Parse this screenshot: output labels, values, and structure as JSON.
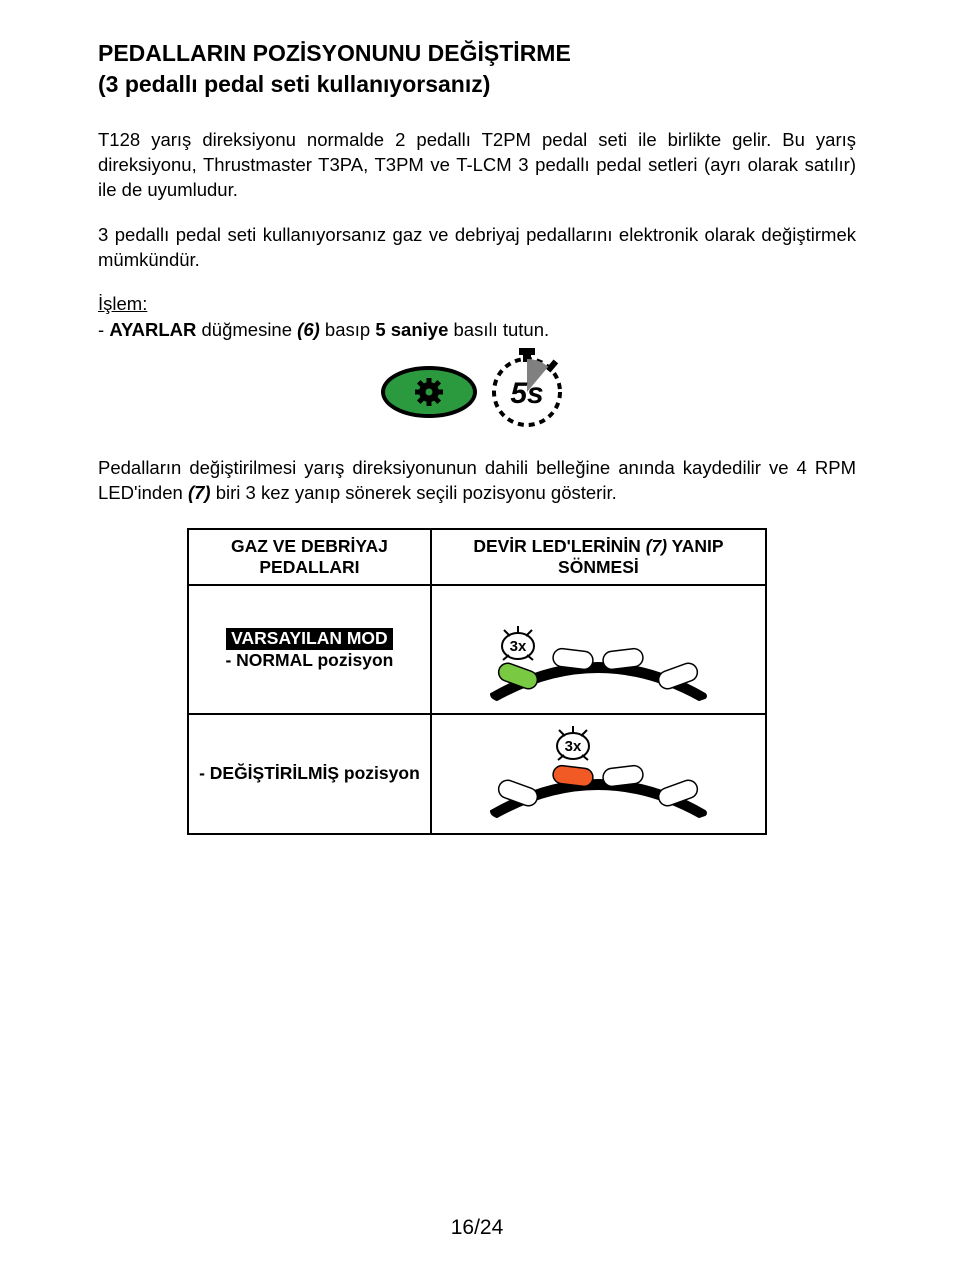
{
  "title": {
    "line1": "PEDALLARIN POZİSYONUNU DEĞİŞTİRME",
    "line2": "(3 pedallı pedal seti kullanıyorsanız)"
  },
  "para1": "T128 yarış direksiyonu normalde 2 pedallı T2PM pedal seti ile birlikte gelir. Bu yarış direksiyonu, Thrustmaster T3PA, T3PM ve T-LCM 3 pedallı pedal setleri (ayrı olarak satılır) ile de uyumludur.",
  "para2": "3 pedallı pedal seti kullanıyorsanız gaz ve debriyaj pedallarını elektronik olarak değiştirmek mümkündür.",
  "islem_label": "İşlem:",
  "instruction": {
    "prefix": "- ",
    "bold1": "AYARLAR",
    "mid1": " düğmesine ",
    "italic_ref": "(6)",
    "mid2": " basıp ",
    "bold2": "5 saniye",
    "suffix": " basılı tutun."
  },
  "figure": {
    "button": {
      "fill": "#2b9a3e",
      "stroke": "#000000",
      "icon_fill": "#000000"
    },
    "stopwatch": {
      "label": "5s",
      "stroke": "#000000",
      "fill": "#ffffff",
      "shade": "#808080"
    }
  },
  "post_figure": {
    "part1": "Pedalların değiştirilmesi yarış direksiyonunun dahili belleğine anında kaydedilir ve 4 RPM LED'inden ",
    "italic_ref": "(7)",
    "part2": " biri 3 kez yanıp sönerek seçili pozisyonu gösterir."
  },
  "table": {
    "headers": {
      "col1": "GAZ VE DEBRİYAJ PEDALLARI",
      "col2_line1": "DEVİR LED'LERİNİN ",
      "col2_ref": "(7)",
      "col2_line2": " YANIP SÖNMESİ"
    },
    "rows": [
      {
        "badge": "VARSAYILAN MOD",
        "label": "- NORMAL pozisyon",
        "led": {
          "strip_fill": "#000000",
          "leds": [
            "#7ac943",
            "#ffffff",
            "#ffffff",
            "#ffffff"
          ],
          "flash_label": "3x",
          "flash_index": 0
        }
      },
      {
        "badge": null,
        "label": "- DEĞİŞTİRİLMİŞ pozisyon",
        "led": {
          "strip_fill": "#000000",
          "leds": [
            "#ffffff",
            "#f15a24",
            "#ffffff",
            "#ffffff"
          ],
          "flash_label": "3x",
          "flash_index": 1
        }
      }
    ]
  },
  "page_number": "16/24"
}
